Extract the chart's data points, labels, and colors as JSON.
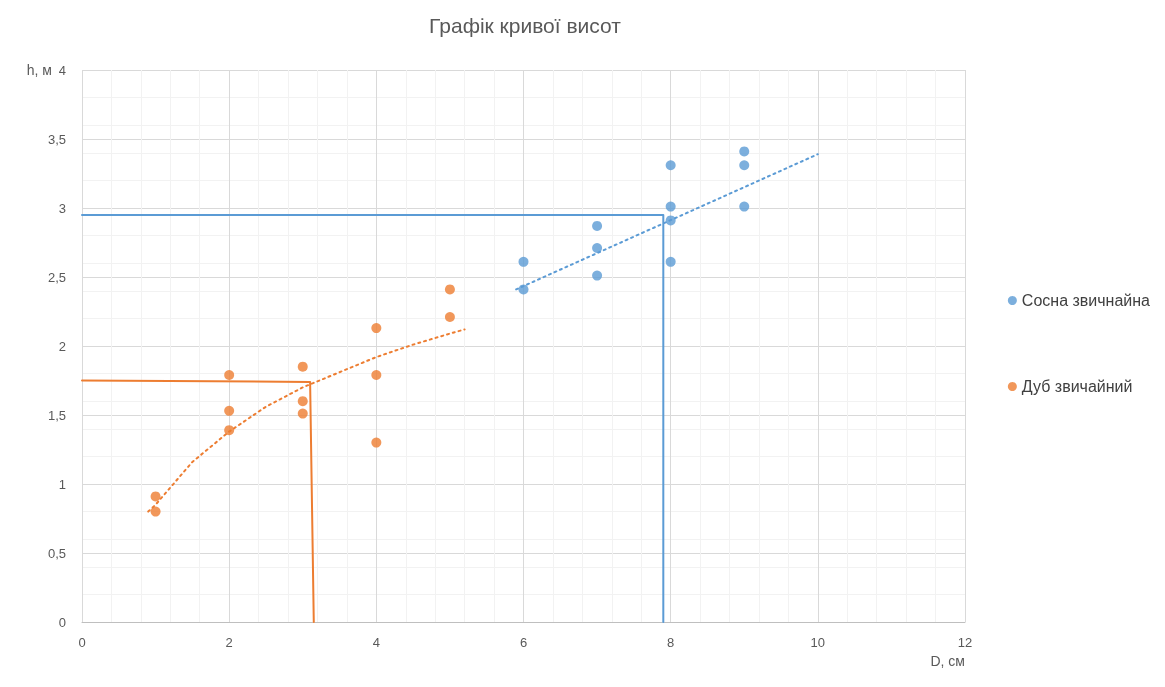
{
  "chart_data": {
    "type": "scatter",
    "title": "Графік кривої висот",
    "xlabel": "D, см",
    "ylabel": "h, м",
    "xlim": [
      0,
      12
    ],
    "xticks": [
      0,
      2,
      4,
      6,
      8,
      10,
      12
    ],
    "ylim": [
      0,
      4
    ],
    "yticks": [
      0,
      {
        "value": 0.5,
        "label": "0,5"
      },
      1,
      {
        "value": 1.5,
        "label": "1,5"
      },
      2,
      {
        "value": 2.5,
        "label": "2,5"
      },
      3,
      {
        "value": 3.5,
        "label": "3,5"
      },
      4
    ],
    "grid": true,
    "legend": "right",
    "marker": "circle",
    "series": [
      {
        "name": "Сосна звичнайна",
        "color": "#5b9bd5",
        "x": [
          6,
          6,
          7,
          7,
          7,
          8,
          8,
          8,
          8,
          9,
          9,
          9
        ],
        "values": [
          2.61,
          2.41,
          2.87,
          2.71,
          2.51,
          3.31,
          3.01,
          2.91,
          2.61,
          3.41,
          3.31,
          3.01
        ]
      },
      {
        "name": "Дуб звичайний",
        "color": "#ed7d31",
        "x": [
          1,
          1,
          2,
          2,
          2,
          3,
          3,
          3,
          4,
          4,
          4,
          5,
          5
        ],
        "values": [
          0.91,
          0.8,
          1.79,
          1.53,
          1.39,
          1.85,
          1.6,
          1.51,
          2.13,
          1.79,
          1.3,
          2.41,
          2.21
        ]
      },
      {
        "type": "line",
        "line_style": "dotted",
        "marker": "none",
        "color": "#5b9bd5",
        "x": [
          5.9,
          10
        ],
        "values": [
          2.41,
          3.39
        ]
      },
      {
        "type": "line",
        "line_style": "dotted",
        "marker": "none",
        "color": "#ed7d31",
        "x": [
          0.9,
          1,
          1.5,
          2,
          2.5,
          3,
          3.5,
          4,
          4.5,
          5,
          5.2
        ],
        "values": [
          0.8,
          0.85,
          1.16,
          1.38,
          1.56,
          1.7,
          1.81,
          1.92,
          2.01,
          2.09,
          2.12
        ]
      },
      {
        "type": "line",
        "line_style": "solid",
        "marker": "none",
        "color": "#5b9bd5",
        "x": [
          0,
          7.9,
          7.9
        ],
        "values": [
          2.95,
          2.95,
          0
        ]
      },
      {
        "type": "line",
        "line_style": "solid",
        "marker": "none",
        "color": "#ed7d31",
        "x": [
          0,
          3.1,
          3.15
        ],
        "values": [
          1.75,
          1.74,
          0
        ]
      }
    ]
  }
}
